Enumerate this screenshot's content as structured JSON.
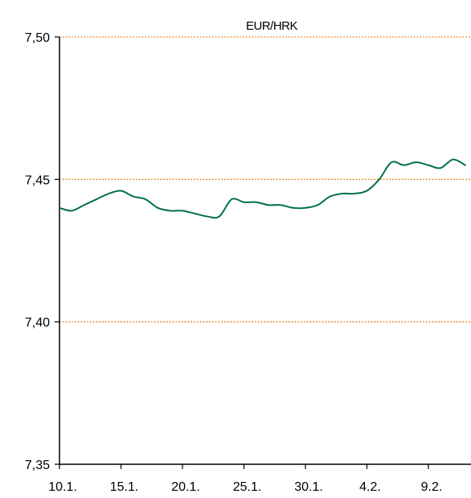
{
  "chart_data": {
    "type": "line",
    "title": "EUR/HRK",
    "xlabel": "",
    "ylabel": "",
    "ylim": [
      7.35,
      7.5
    ],
    "y_ticks": [
      "7,35",
      "7,40",
      "7,45",
      "7,50"
    ],
    "y_tick_values": [
      7.35,
      7.4,
      7.45,
      7.5
    ],
    "x_ticks": [
      "10.1.",
      "15.1.",
      "20.1.",
      "25.1.",
      "30.1.",
      "4.2.",
      "9.2."
    ],
    "grid": "horizontal dotted at 7,40 / 7,45 / 7,50",
    "line_color": "#00704A",
    "grid_color": "#E46C0A",
    "series": [
      {
        "x": [
          "10.1.",
          "11.1.",
          "12.1.",
          "13.1.",
          "14.1.",
          "15.1.",
          "16.1.",
          "17.1.",
          "18.1.",
          "19.1.",
          "20.1.",
          "21.1.",
          "22.1.",
          "23.1.",
          "24.1.",
          "25.1.",
          "26.1.",
          "27.1.",
          "28.1.",
          "29.1.",
          "30.1.",
          "31.1.",
          "1.2.",
          "2.2.",
          "3.2.",
          "4.2.",
          "5.2.",
          "6.2.",
          "7.2.",
          "8.2.",
          "9.2.",
          "10.2.",
          "11.2.",
          "12.2."
        ],
        "values": [
          7.44,
          7.439,
          7.441,
          7.443,
          7.445,
          7.446,
          7.444,
          7.443,
          7.44,
          7.439,
          7.439,
          7.438,
          7.437,
          7.437,
          7.443,
          7.442,
          7.442,
          7.441,
          7.441,
          7.44,
          7.44,
          7.441,
          7.444,
          7.445,
          7.445,
          7.446,
          7.45,
          7.456,
          7.455,
          7.456,
          7.455,
          7.454,
          7.457,
          7.455
        ]
      }
    ]
  }
}
